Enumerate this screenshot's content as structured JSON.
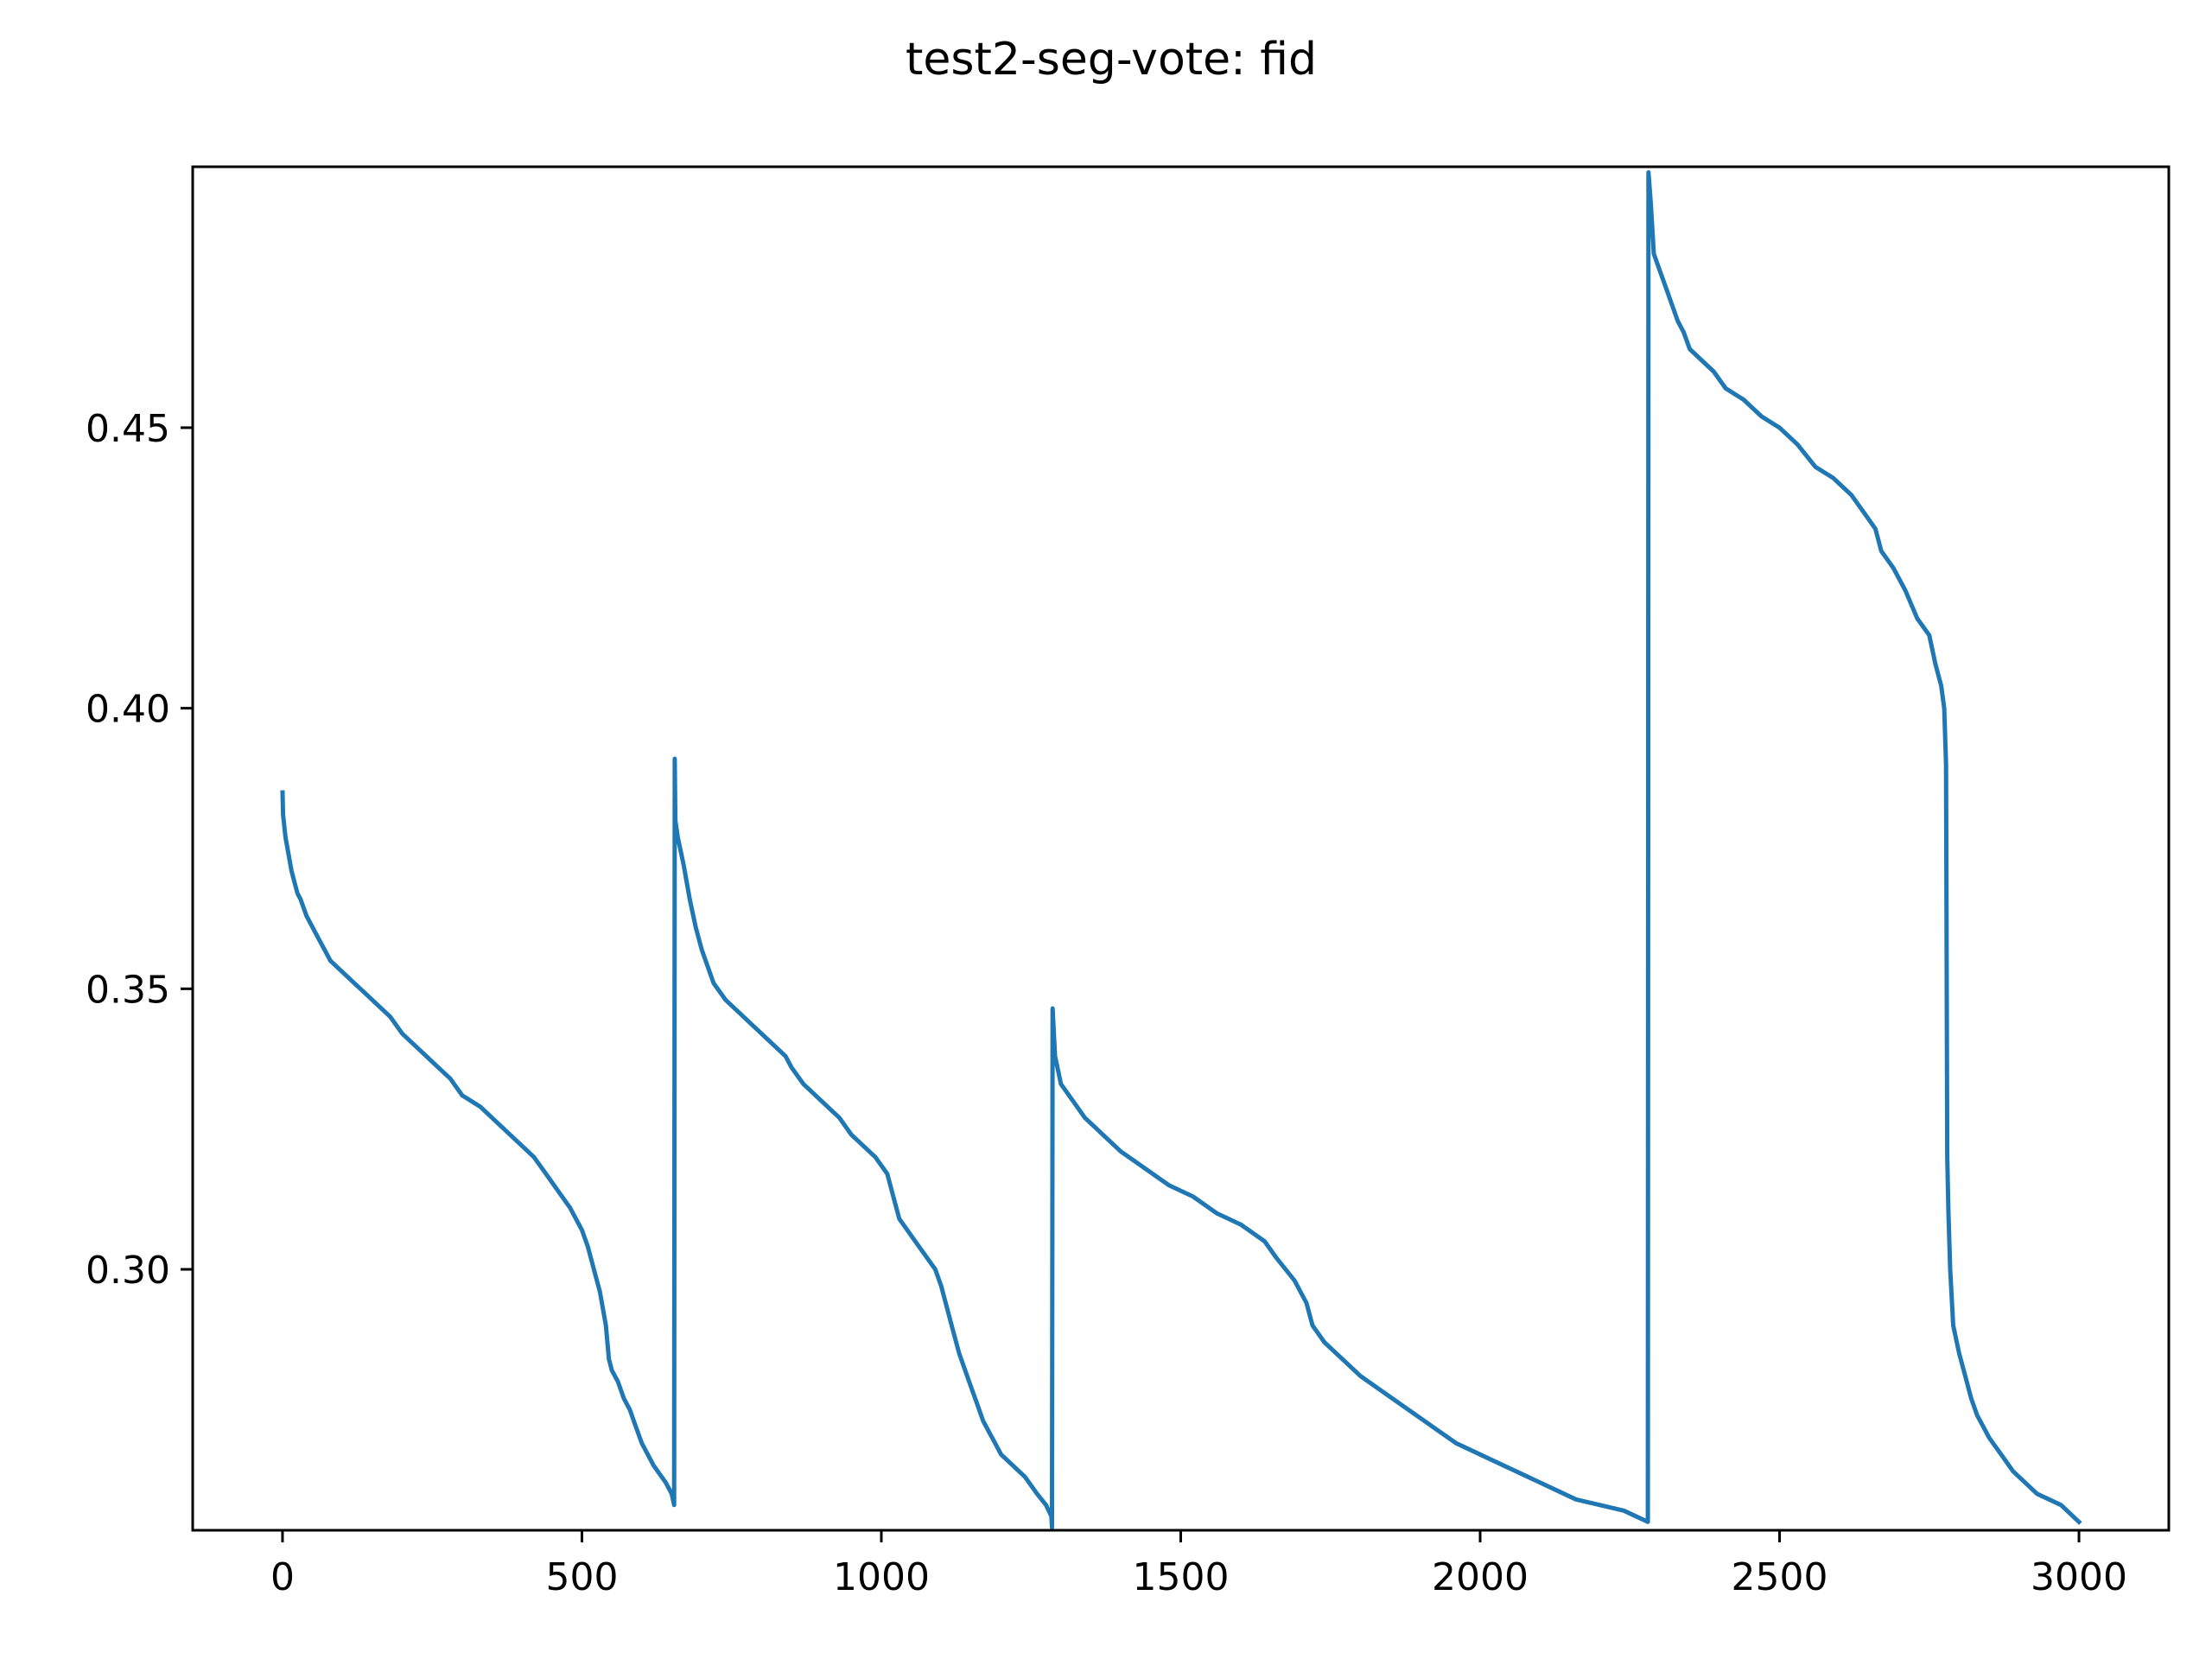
{
  "chart_data": {
    "type": "line",
    "title": "test2-seg-vote: fid",
    "xlabel": "",
    "ylabel": "",
    "xlim": [
      -150,
      3150
    ],
    "ylim": [
      0.2535,
      0.4965
    ],
    "grid": false,
    "legend": "none",
    "x_ticks": [
      {
        "value": 0,
        "label": "0"
      },
      {
        "value": 500,
        "label": "500"
      },
      {
        "value": 1000,
        "label": "1000"
      },
      {
        "value": 1500,
        "label": "1500"
      },
      {
        "value": 2000,
        "label": "2000"
      },
      {
        "value": 2500,
        "label": "2500"
      },
      {
        "value": 3000,
        "label": "3000"
      }
    ],
    "y_ticks": [
      {
        "value": 0.3,
        "label": "0.30"
      },
      {
        "value": 0.35,
        "label": "0.35"
      },
      {
        "value": 0.4,
        "label": "0.40"
      },
      {
        "value": 0.45,
        "label": "0.45"
      }
    ],
    "series": [
      {
        "color": "#1f77b4",
        "points": [
          [
            0,
            0.385
          ],
          [
            1,
            0.381
          ],
          [
            5,
            0.377
          ],
          [
            10,
            0.374
          ],
          [
            15,
            0.371
          ],
          [
            20,
            0.369
          ],
          [
            25,
            0.367
          ],
          [
            30,
            0.366
          ],
          [
            40,
            0.363
          ],
          [
            50,
            0.361
          ],
          [
            60,
            0.359
          ],
          [
            70,
            0.357
          ],
          [
            80,
            0.355
          ],
          [
            100,
            0.353
          ],
          [
            120,
            0.351
          ],
          [
            140,
            0.349
          ],
          [
            160,
            0.347
          ],
          [
            180,
            0.345
          ],
          [
            200,
            0.342
          ],
          [
            230,
            0.339
          ],
          [
            260,
            0.336
          ],
          [
            280,
            0.334
          ],
          [
            300,
            0.331
          ],
          [
            330,
            0.329
          ],
          [
            350,
            0.327
          ],
          [
            380,
            0.324
          ],
          [
            400,
            0.322
          ],
          [
            420,
            0.32
          ],
          [
            440,
            0.317
          ],
          [
            460,
            0.314
          ],
          [
            480,
            0.311
          ],
          [
            500,
            0.307
          ],
          [
            510,
            0.304
          ],
          [
            520,
            0.3
          ],
          [
            530,
            0.296
          ],
          [
            540,
            0.29
          ],
          [
            545,
            0.284
          ],
          [
            550,
            0.282
          ],
          [
            560,
            0.28
          ],
          [
            570,
            0.277
          ],
          [
            580,
            0.275
          ],
          [
            590,
            0.272
          ],
          [
            600,
            0.269
          ],
          [
            620,
            0.265
          ],
          [
            640,
            0.262
          ],
          [
            650,
            0.26
          ],
          [
            654,
            0.258
          ],
          [
            655,
            0.391
          ],
          [
            656,
            0.38
          ],
          [
            660,
            0.377
          ],
          [
            670,
            0.372
          ],
          [
            680,
            0.366
          ],
          [
            690,
            0.361
          ],
          [
            700,
            0.357
          ],
          [
            710,
            0.354
          ],
          [
            720,
            0.351
          ],
          [
            740,
            0.348
          ],
          [
            760,
            0.346
          ],
          [
            780,
            0.344
          ],
          [
            800,
            0.342
          ],
          [
            820,
            0.34
          ],
          [
            840,
            0.338
          ],
          [
            850,
            0.336
          ],
          [
            870,
            0.333
          ],
          [
            890,
            0.331
          ],
          [
            910,
            0.329
          ],
          [
            930,
            0.327
          ],
          [
            950,
            0.324
          ],
          [
            970,
            0.322
          ],
          [
            990,
            0.32
          ],
          [
            1010,
            0.317
          ],
          [
            1020,
            0.313
          ],
          [
            1030,
            0.309
          ],
          [
            1050,
            0.306
          ],
          [
            1070,
            0.303
          ],
          [
            1090,
            0.3
          ],
          [
            1100,
            0.297
          ],
          [
            1110,
            0.293
          ],
          [
            1120,
            0.289
          ],
          [
            1130,
            0.285
          ],
          [
            1140,
            0.282
          ],
          [
            1150,
            0.279
          ],
          [
            1160,
            0.276
          ],
          [
            1170,
            0.273
          ],
          [
            1180,
            0.271
          ],
          [
            1190,
            0.269
          ],
          [
            1200,
            0.267
          ],
          [
            1220,
            0.265
          ],
          [
            1240,
            0.263
          ],
          [
            1260,
            0.26
          ],
          [
            1275,
            0.258
          ],
          [
            1284,
            0.256
          ],
          [
            1285,
            0.254
          ],
          [
            1286,
            0.3465
          ],
          [
            1290,
            0.338
          ],
          [
            1300,
            0.333
          ],
          [
            1320,
            0.33
          ],
          [
            1340,
            0.327
          ],
          [
            1360,
            0.325
          ],
          [
            1380,
            0.323
          ],
          [
            1400,
            0.321
          ],
          [
            1440,
            0.318
          ],
          [
            1480,
            0.315
          ],
          [
            1520,
            0.313
          ],
          [
            1560,
            0.31
          ],
          [
            1600,
            0.308
          ],
          [
            1640,
            0.305
          ],
          [
            1660,
            0.302
          ],
          [
            1690,
            0.298
          ],
          [
            1710,
            0.294
          ],
          [
            1720,
            0.29
          ],
          [
            1740,
            0.287
          ],
          [
            1770,
            0.284
          ],
          [
            1800,
            0.281
          ],
          [
            1840,
            0.278
          ],
          [
            1880,
            0.275
          ],
          [
            1920,
            0.272
          ],
          [
            1960,
            0.269
          ],
          [
            2000,
            0.267
          ],
          [
            2040,
            0.265
          ],
          [
            2080,
            0.263
          ],
          [
            2120,
            0.261
          ],
          [
            2160,
            0.259
          ],
          [
            2200,
            0.258
          ],
          [
            2240,
            0.257
          ],
          [
            2260,
            0.256
          ],
          [
            2280,
            0.255
          ],
          [
            2281,
            0.4955
          ],
          [
            2285,
            0.49
          ],
          [
            2290,
            0.481
          ],
          [
            2300,
            0.478
          ],
          [
            2310,
            0.475
          ],
          [
            2320,
            0.472
          ],
          [
            2330,
            0.469
          ],
          [
            2340,
            0.467
          ],
          [
            2350,
            0.464
          ],
          [
            2370,
            0.462
          ],
          [
            2390,
            0.46
          ],
          [
            2410,
            0.457
          ],
          [
            2440,
            0.455
          ],
          [
            2470,
            0.452
          ],
          [
            2500,
            0.45
          ],
          [
            2530,
            0.447
          ],
          [
            2560,
            0.443
          ],
          [
            2590,
            0.441
          ],
          [
            2620,
            0.438
          ],
          [
            2640,
            0.435
          ],
          [
            2660,
            0.432
          ],
          [
            2670,
            0.428
          ],
          [
            2690,
            0.425
          ],
          [
            2710,
            0.421
          ],
          [
            2730,
            0.416
          ],
          [
            2750,
            0.413
          ],
          [
            2760,
            0.408
          ],
          [
            2770,
            0.404
          ],
          [
            2775,
            0.4
          ],
          [
            2778,
            0.39
          ],
          [
            2780,
            0.32
          ],
          [
            2782,
            0.31
          ],
          [
            2785,
            0.3
          ],
          [
            2790,
            0.29
          ],
          [
            2800,
            0.285
          ],
          [
            2810,
            0.281
          ],
          [
            2820,
            0.277
          ],
          [
            2830,
            0.274
          ],
          [
            2840,
            0.272
          ],
          [
            2850,
            0.27
          ],
          [
            2870,
            0.267
          ],
          [
            2890,
            0.264
          ],
          [
            2910,
            0.262
          ],
          [
            2930,
            0.26
          ],
          [
            2950,
            0.259
          ],
          [
            2970,
            0.258
          ],
          [
            2990,
            0.256
          ],
          [
            3000,
            0.255
          ]
        ]
      }
    ]
  }
}
